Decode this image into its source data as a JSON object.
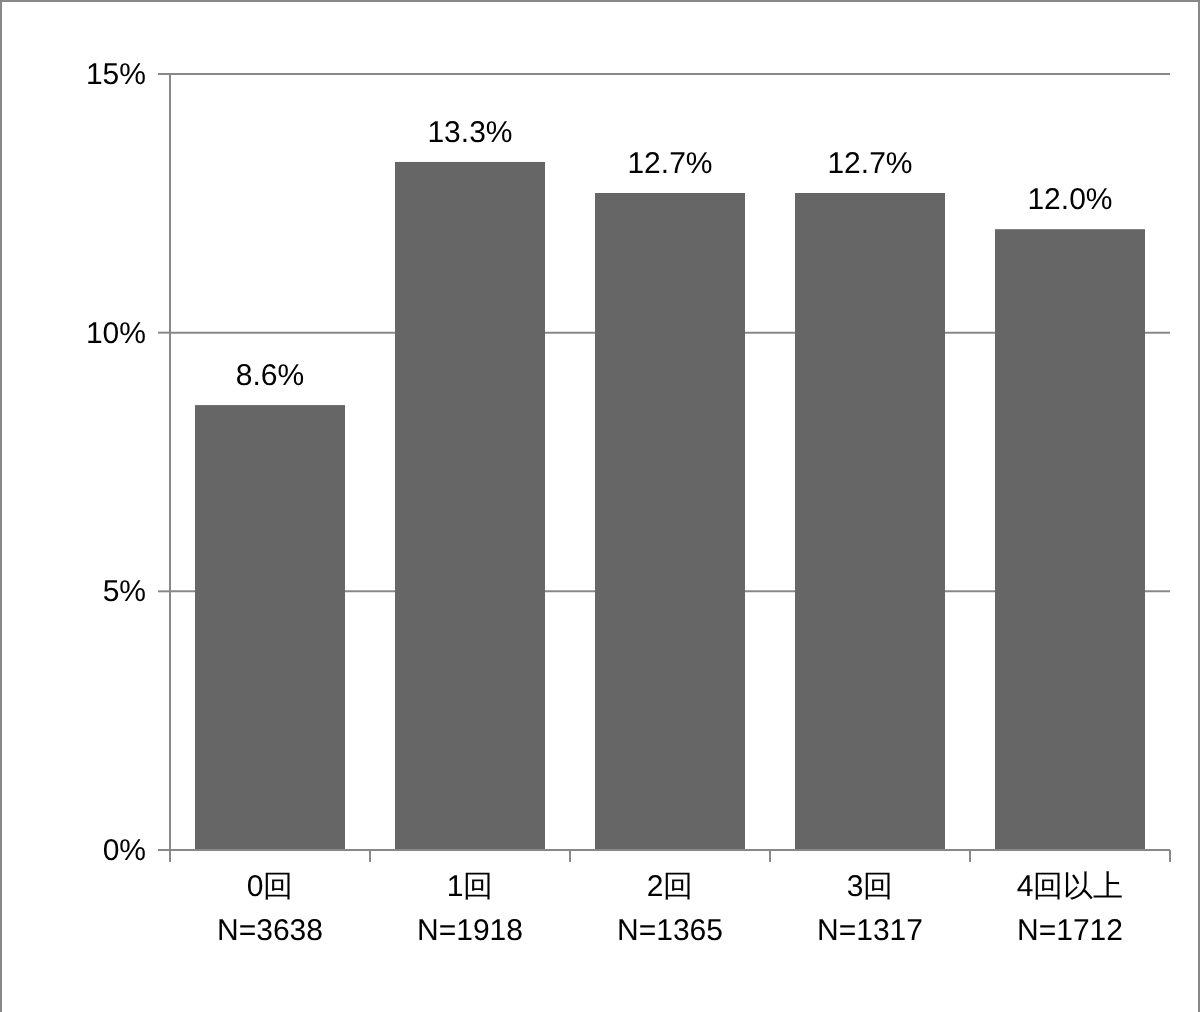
{
  "chart_data": {
    "type": "bar",
    "categories": [
      "0回\nN=3638",
      "1回\nN=1918",
      "2回\nN=1365",
      "3回\nN=1317",
      "4回以上\nN=1712"
    ],
    "values": [
      8.6,
      13.3,
      12.7,
      12.7,
      12.0
    ],
    "value_labels": [
      "8.6%",
      "13.3%",
      "12.7%",
      "12.7%",
      "12.0%"
    ],
    "color": "#666666",
    "ylim": [
      0,
      15
    ],
    "yticks": [
      {
        "value": 0,
        "label": "0%"
      },
      {
        "value": 5,
        "label": "5%"
      },
      {
        "value": 10,
        "label": "10%"
      },
      {
        "value": 15,
        "label": "15%"
      }
    ],
    "grid": "y"
  }
}
